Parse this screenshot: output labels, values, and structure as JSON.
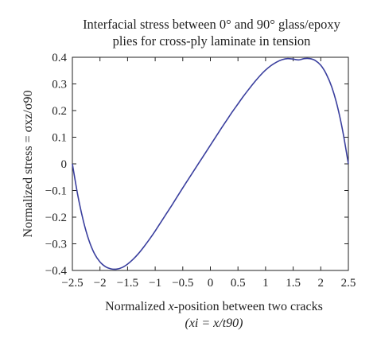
{
  "chart_data": {
    "type": "line",
    "title": [
      "Interfacial stress between 0° and 90° glass/epoxy",
      "plies for cross-ply laminate in tension"
    ],
    "xlabel": {
      "line1_pre": "Normalized ",
      "line1_italic": "x",
      "line1_post": "-position between two cracks",
      "line2": "(xi = x/t90)"
    },
    "ylabel": "Normalized stress = σxz/σ90",
    "xlim": [
      -2.5,
      2.5
    ],
    "ylim": [
      -0.4,
      0.4
    ],
    "xticks": [
      -2.5,
      -2,
      -1.5,
      -1,
      -0.5,
      0,
      0.5,
      1,
      1.5,
      2,
      2.5
    ],
    "xtick_labels": [
      "−2.5",
      "−2",
      "−1.5",
      "−1",
      "−0.5",
      "0",
      "0.5",
      "1",
      "1.5",
      "2",
      "2.5"
    ],
    "yticks": [
      0.4,
      0.3,
      0.2,
      0.1,
      0,
      -0.1,
      -0.2,
      -0.3,
      -0.4
    ],
    "ytick_labels": [
      "0.4",
      "0.3",
      "0.2",
      "0.1",
      "0",
      "−0.1",
      "−0.2",
      "−0.3",
      "−0.4"
    ],
    "grid": false,
    "series": [
      {
        "color": "#3a3f9e",
        "x": [
          -2.5,
          -2.4,
          -2.3,
          -2.2,
          -2.1,
          -2.0,
          -1.9,
          -1.8,
          -1.7,
          -1.6,
          -1.5,
          -1.4,
          -1.3,
          -1.2,
          -1.1,
          -1.0,
          -0.9,
          -0.8,
          -0.7,
          -0.6,
          -0.5,
          -0.4,
          -0.3,
          -0.2,
          -0.1,
          0.0,
          0.1,
          0.2,
          0.3,
          0.4,
          0.5,
          0.6,
          0.7,
          0.8,
          0.9,
          1.0,
          1.1,
          1.2,
          1.3,
          1.4,
          1.5,
          1.6,
          1.7,
          1.8,
          1.9,
          2.0,
          2.1,
          2.2,
          2.3,
          2.4,
          2.5
        ],
        "y": [
          0.0,
          -0.12,
          -0.215,
          -0.287,
          -0.337,
          -0.368,
          -0.386,
          -0.394,
          -0.395,
          -0.389,
          -0.376,
          -0.358,
          -0.336,
          -0.31,
          -0.282,
          -0.252,
          -0.22,
          -0.188,
          -0.156,
          -0.123,
          -0.09,
          -0.058,
          -0.026,
          0.006,
          0.038,
          0.07,
          0.102,
          0.134,
          0.165,
          0.196,
          0.225,
          0.254,
          0.281,
          0.307,
          0.331,
          0.352,
          0.369,
          0.382,
          0.391,
          0.395,
          0.393,
          0.39,
          0.395,
          0.395,
          0.388,
          0.37,
          0.337,
          0.288,
          0.217,
          0.121,
          0.0
        ]
      }
    ]
  }
}
